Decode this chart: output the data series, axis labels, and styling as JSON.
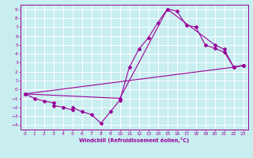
{
  "xlabel": "Windchill (Refroidissement éolien,°C)",
  "bg_color": "#c8eef0",
  "grid_color": "#ffffff",
  "line_color": "#990099",
  "xlim": [
    -0.5,
    23.5
  ],
  "ylim": [
    -4.5,
    9.5
  ],
  "xticks": [
    0,
    1,
    2,
    3,
    4,
    5,
    6,
    7,
    8,
    9,
    10,
    11,
    12,
    13,
    14,
    15,
    16,
    17,
    18,
    19,
    20,
    21,
    22,
    23
  ],
  "yticks": [
    -4,
    -3,
    -2,
    -1,
    0,
    1,
    2,
    3,
    4,
    5,
    6,
    7,
    8,
    9
  ],
  "curve1_x": [
    0,
    1,
    2,
    3,
    3,
    4,
    5,
    5,
    6,
    7,
    8,
    9,
    10,
    11,
    12,
    13,
    14,
    15,
    16,
    17,
    18,
    19,
    20,
    21,
    22,
    23
  ],
  "curve1_y": [
    -0.5,
    -1.0,
    -1.3,
    -1.5,
    -1.8,
    -2.0,
    -2.3,
    -2.0,
    -2.5,
    -2.8,
    -3.8,
    -2.5,
    -1.2,
    2.5,
    4.5,
    5.8,
    7.5,
    9.0,
    8.8,
    7.2,
    7.0,
    5.0,
    4.6,
    4.2,
    2.5,
    2.7
  ],
  "curve2_x": [
    0,
    10,
    15,
    20,
    21,
    22,
    23
  ],
  "curve2_y": [
    -0.5,
    -1.0,
    9.0,
    5.0,
    4.5,
    2.5,
    2.7
  ],
  "curve3_x": [
    0,
    22,
    23
  ],
  "curve3_y": [
    -0.5,
    2.5,
    2.7
  ]
}
